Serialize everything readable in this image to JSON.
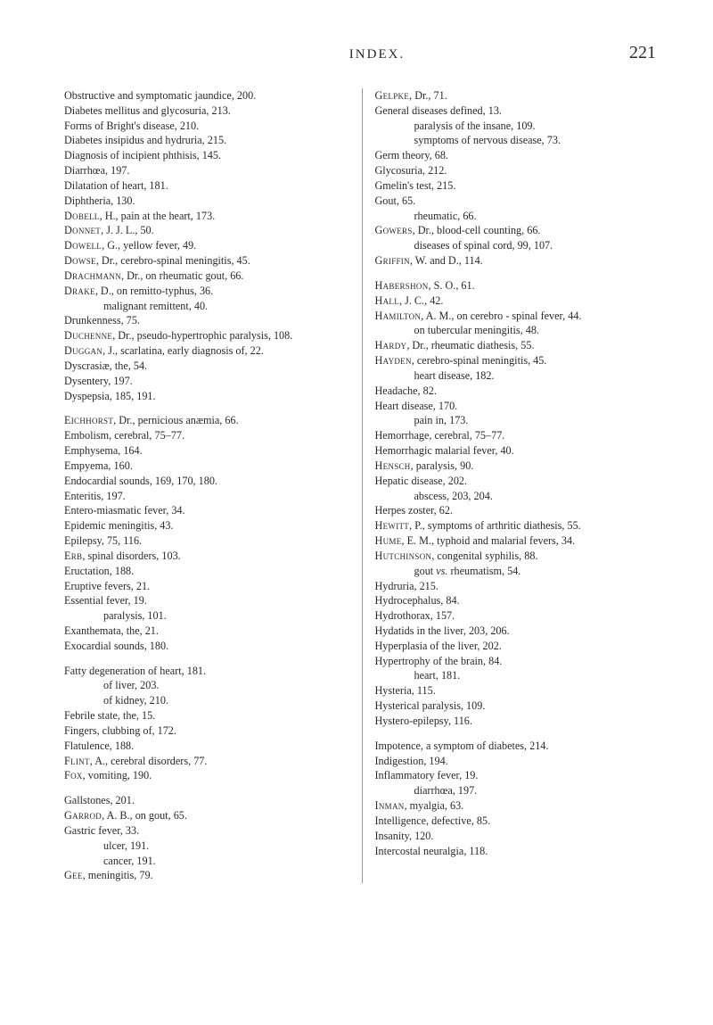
{
  "header": {
    "title": "INDEX.",
    "page": "221"
  },
  "left": [
    {
      "cls": "indent1",
      "html": "Obstructive and symptomatic jaundice, 200."
    },
    {
      "cls": "indent1",
      "html": "Diabetes mellitus and glycosuria, 213."
    },
    {
      "cls": "indent1",
      "html": "Forms of Bright's disease, 210."
    },
    {
      "cls": "indent1",
      "html": "Diabetes insipidus and hydruria, 215."
    },
    {
      "cls": "indent1",
      "html": "Diagnosis of incipient phthisis, 145."
    },
    {
      "cls": "indent1",
      "html": "Diarrhœa, 197."
    },
    {
      "cls": "indent1",
      "html": "Dilatation of heart, 181."
    },
    {
      "cls": "indent1",
      "html": "Diphtheria, 130."
    },
    {
      "cls": "indent1",
      "html": "<span class='sc'>Dobell</span>, H., pain at the heart, 173."
    },
    {
      "cls": "indent1",
      "html": "<span class='sc'>Donnet</span>, J. J. L., 50."
    },
    {
      "cls": "indent1",
      "html": "<span class='sc'>Dowell</span>, G., yellow fever, 49."
    },
    {
      "cls": "indent1",
      "html": "<span class='sc'>Dowse</span>, Dr., cerebro-spinal meningitis, 45."
    },
    {
      "cls": "indent1",
      "html": "<span class='sc'>Drachmann</span>, Dr., on rheumatic gout, 66."
    },
    {
      "cls": "indent1",
      "html": "<span class='sc'>Drake</span>, D., on remitto-typhus, 36."
    },
    {
      "cls": "indent2",
      "html": "malignant remittent, 40."
    },
    {
      "cls": "indent1",
      "html": "Drunkenness, 75."
    },
    {
      "cls": "indent1",
      "html": "<span class='sc'>Duchenne</span>, Dr., pseudo-hypertrophic paralysis, 108."
    },
    {
      "cls": "indent1",
      "html": "<span class='sc'>Duggan</span>, J., scarlatina, early diagnosis of, 22."
    },
    {
      "cls": "indent1",
      "html": "Dyscrasiæ, the, 54."
    },
    {
      "cls": "indent1",
      "html": "Dysentery, 197."
    },
    {
      "cls": "indent1",
      "html": "Dyspepsia, 185, 191."
    },
    {
      "cls": "gap"
    },
    {
      "cls": "indent1",
      "html": "<span class='sc'>Eichhorst</span>, Dr., pernicious anæmia, 66."
    },
    {
      "cls": "indent1",
      "html": "Embolism, cerebral, 75–77."
    },
    {
      "cls": "indent1",
      "html": "Emphysema, 164."
    },
    {
      "cls": "indent1",
      "html": "Empyema, 160."
    },
    {
      "cls": "indent1",
      "html": "Endocardial sounds, 169, 170, 180."
    },
    {
      "cls": "indent1",
      "html": "Enteritis, 197."
    },
    {
      "cls": "indent1",
      "html": "Entero-miasmatic fever, 34."
    },
    {
      "cls": "indent1",
      "html": "Epidemic meningitis, 43."
    },
    {
      "cls": "indent1",
      "html": "Epilepsy, 75, 116."
    },
    {
      "cls": "indent1",
      "html": "<span class='sc'>Erb</span>, spinal disorders, 103."
    },
    {
      "cls": "indent1",
      "html": "Eructation, 188."
    },
    {
      "cls": "indent1",
      "html": "Eruptive fevers, 21."
    },
    {
      "cls": "indent1",
      "html": "Essential fever, 19."
    },
    {
      "cls": "indent2",
      "html": "paralysis, 101."
    },
    {
      "cls": "indent1",
      "html": "Exanthemata, the, 21."
    },
    {
      "cls": "indent1",
      "html": "Exocardial sounds, 180."
    },
    {
      "cls": "gap"
    },
    {
      "cls": "indent1",
      "html": "Fatty degeneration of heart, 181."
    },
    {
      "cls": "indent2",
      "html": "of liver, 203."
    },
    {
      "cls": "indent2",
      "html": "of kidney, 210."
    },
    {
      "cls": "indent1",
      "html": "Febrile state, the, 15."
    },
    {
      "cls": "indent1",
      "html": "Fingers, clubbing of, 172."
    },
    {
      "cls": "indent1",
      "html": "Flatulence, 188."
    },
    {
      "cls": "indent1",
      "html": "<span class='sc'>Flint</span>, A., cerebral disorders, 77."
    },
    {
      "cls": "indent1",
      "html": "<span class='sc'>Fox</span>, vomiting, 190."
    },
    {
      "cls": "gap"
    },
    {
      "cls": "indent1",
      "html": "Gallstones, 201."
    },
    {
      "cls": "indent1",
      "html": "<span class='sc'>Garrod</span>, A. B., on gout, 65."
    },
    {
      "cls": "indent1",
      "html": "Gastric fever, 33."
    },
    {
      "cls": "indent2",
      "html": "ulcer, 191."
    },
    {
      "cls": "indent2",
      "html": "cancer, 191."
    },
    {
      "cls": "indent1",
      "html": "<span class='sc'>Gee</span>, meningitis, 79."
    }
  ],
  "right": [
    {
      "cls": "indent1",
      "html": "<span class='sc'>Gelpke</span>, Dr., 71."
    },
    {
      "cls": "indent1",
      "html": "General diseases defined, 13."
    },
    {
      "cls": "indent2",
      "html": "paralysis of the insane, 109."
    },
    {
      "cls": "indent2",
      "html": "symptoms of nervous disease, 73."
    },
    {
      "cls": "indent1",
      "html": "Germ theory, 68."
    },
    {
      "cls": "indent1",
      "html": "Glycosuria, 212."
    },
    {
      "cls": "indent1",
      "html": "Gmelin's test, 215."
    },
    {
      "cls": "indent1",
      "html": "Gout, 65."
    },
    {
      "cls": "indent2",
      "html": "rheumatic, 66."
    },
    {
      "cls": "indent1",
      "html": "<span class='sc'>Gowers</span>, Dr., blood-cell counting, 66."
    },
    {
      "cls": "indent2",
      "html": "diseases of spinal cord, 99, 107."
    },
    {
      "cls": "indent1",
      "html": "<span class='sc'>Griffin</span>, W. and D., 114."
    },
    {
      "cls": "gap"
    },
    {
      "cls": "indent1",
      "html": "<span class='sc'>Habershon</span>, S. O., 61."
    },
    {
      "cls": "indent1",
      "html": "<span class='sc'>Hall</span>, J. C., 42."
    },
    {
      "cls": "indent1",
      "html": "<span class='sc'>Hamilton</span>, A. M., on cerebro - spinal fever, 44."
    },
    {
      "cls": "indent2",
      "html": "on tubercular meningitis, 48."
    },
    {
      "cls": "indent1",
      "html": "<span class='sc'>Hardy</span>, Dr., rheumatic diathesis, 55."
    },
    {
      "cls": "indent1",
      "html": "<span class='sc'>Hayden</span>, cerebro-spinal meningitis, 45."
    },
    {
      "cls": "indent2",
      "html": "heart disease, 182."
    },
    {
      "cls": "indent1",
      "html": "Headache, 82."
    },
    {
      "cls": "indent1",
      "html": "Heart disease, 170."
    },
    {
      "cls": "indent2",
      "html": "pain in, 173."
    },
    {
      "cls": "indent1",
      "html": "Hemorrhage, cerebral, 75–77."
    },
    {
      "cls": "indent1",
      "html": "Hemorrhagic malarial fever, 40."
    },
    {
      "cls": "indent1",
      "html": "<span class='sc'>Hensch</span>, paralysis, 90."
    },
    {
      "cls": "indent1",
      "html": "Hepatic disease, 202."
    },
    {
      "cls": "indent2",
      "html": "abscess, 203, 204."
    },
    {
      "cls": "indent1",
      "html": "Herpes zoster, 62."
    },
    {
      "cls": "indent1",
      "html": "<span class='sc'>Hewitt</span>, P., symptoms of arthritic diathesis, 55."
    },
    {
      "cls": "indent1",
      "html": "<span class='sc'>Hume</span>, E. M., typhoid and malarial fevers, 34."
    },
    {
      "cls": "indent1",
      "html": "<span class='sc'>Hutchinson</span>, congenital syphilis, 88."
    },
    {
      "cls": "indent2",
      "html": "gout <i>vs.</i> rheumatism, 54."
    },
    {
      "cls": "indent1",
      "html": "Hydruria, 215."
    },
    {
      "cls": "indent1",
      "html": "Hydrocephalus, 84."
    },
    {
      "cls": "indent1",
      "html": "Hydrothorax, 157."
    },
    {
      "cls": "indent1",
      "html": "Hydatids in the liver, 203, 206."
    },
    {
      "cls": "indent1",
      "html": "Hyperplasia of the liver, 202."
    },
    {
      "cls": "indent1",
      "html": "Hypertrophy of the brain, 84."
    },
    {
      "cls": "indent2",
      "html": "heart, 181."
    },
    {
      "cls": "indent1",
      "html": "Hysteria, 115."
    },
    {
      "cls": "indent1",
      "html": "Hysterical paralysis, 109."
    },
    {
      "cls": "indent1",
      "html": "Hystero-epilepsy, 116."
    },
    {
      "cls": "gap"
    },
    {
      "cls": "indent1",
      "html": "Impotence, a symptom of diabetes, 214."
    },
    {
      "cls": "indent1",
      "html": "Indigestion, 194."
    },
    {
      "cls": "indent1",
      "html": "Inflammatory fever, 19."
    },
    {
      "cls": "indent2",
      "html": "diarrhœa, 197."
    },
    {
      "cls": "indent1",
      "html": "<span class='sc'>Inman</span>, myalgia, 63."
    },
    {
      "cls": "indent1",
      "html": "Intelligence, defective, 85."
    },
    {
      "cls": "indent1",
      "html": "Insanity, 120."
    },
    {
      "cls": "indent1",
      "html": "Intercostal neuralgia, 118."
    }
  ]
}
